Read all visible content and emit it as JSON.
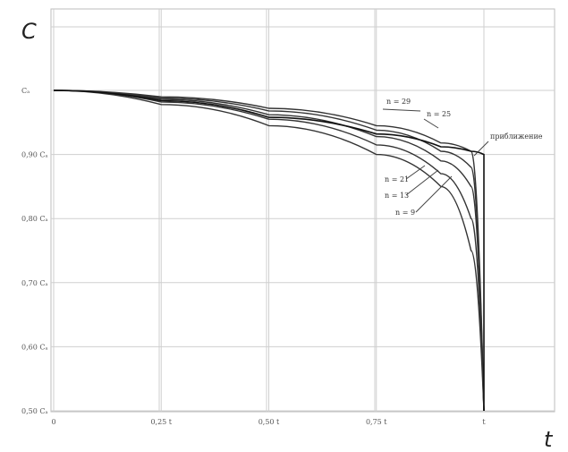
{
  "chart_data": {
    "type": "line",
    "title": "",
    "ylabel": "C",
    "xlabel": "t",
    "xlim": [
      0,
      1.15
    ],
    "ylim": [
      0.5,
      1.0
    ],
    "x_ticks": [
      {
        "value": 0,
        "label": "0"
      },
      {
        "value": 0.25,
        "label": "0,25 t"
      },
      {
        "value": 0.5,
        "label": "0,50 t"
      },
      {
        "value": 0.75,
        "label": "0,75 t"
      },
      {
        "value": 1.0,
        "label": "t"
      }
    ],
    "y_ticks": [
      {
        "value": 1.0,
        "label": "Cₐ"
      },
      {
        "value": 0.9,
        "label": "0,90 Cₐ"
      },
      {
        "value": 0.8,
        "label": "0,80 Cₐ"
      },
      {
        "value": 0.7,
        "label": "0,70 Cₐ"
      },
      {
        "value": 0.6,
        "label": "0,60 Cₐ"
      },
      {
        "value": 0.5,
        "label": "0,50 Cₐ"
      }
    ],
    "grid": true,
    "series": [
      {
        "name": "n = 29",
        "x": [
          0,
          0.25,
          0.5,
          0.75,
          0.9,
          0.97,
          1.0
        ],
        "y": [
          1.0,
          0.99,
          0.972,
          0.945,
          0.918,
          0.905,
          0.5
        ]
      },
      {
        "name": "n = 25",
        "x": [
          0,
          0.25,
          0.5,
          0.75,
          0.9,
          0.97,
          1.0
        ],
        "y": [
          1.0,
          0.988,
          0.968,
          0.938,
          0.905,
          0.88,
          0.5
        ]
      },
      {
        "name": "n = 21",
        "x": [
          0,
          0.25,
          0.5,
          0.75,
          0.9,
          0.97,
          1.0
        ],
        "y": [
          1.0,
          0.986,
          0.962,
          0.928,
          0.89,
          0.85,
          0.5
        ]
      },
      {
        "name": "n = 13",
        "x": [
          0,
          0.25,
          0.5,
          0.75,
          0.9,
          0.97,
          1.0
        ],
        "y": [
          1.0,
          0.982,
          0.955,
          0.915,
          0.87,
          0.8,
          0.5
        ]
      },
      {
        "name": "n = 9",
        "x": [
          0,
          0.25,
          0.5,
          0.75,
          0.9,
          0.97,
          1.0
        ],
        "y": [
          1.0,
          0.978,
          0.945,
          0.9,
          0.85,
          0.75,
          0.5
        ]
      },
      {
        "name": "приближение",
        "x": [
          0,
          0.25,
          0.5,
          0.75,
          0.9,
          0.97,
          1.0,
          1.0
        ],
        "y": [
          1.0,
          0.984,
          0.958,
          0.932,
          0.912,
          0.905,
          0.9,
          0.5
        ]
      }
    ]
  }
}
